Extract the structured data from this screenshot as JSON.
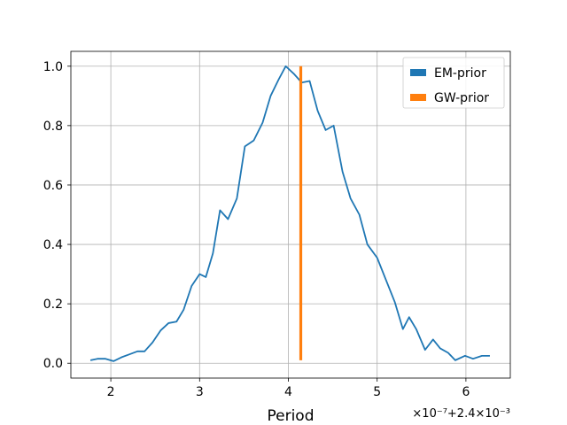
{
  "chart_data": {
    "type": "line",
    "xlabel": "Period",
    "ylabel": "",
    "x_offset_label": "×10⁻⁷+2.4×10⁻³",
    "xlim": [
      1.55,
      6.5
    ],
    "ylim": [
      -0.05,
      1.05
    ],
    "xticks": [
      2,
      3,
      4,
      5,
      6
    ],
    "yticks": [
      0.0,
      0.2,
      0.4,
      0.6,
      0.8,
      1.0
    ],
    "xtick_labels": [
      "2",
      "3",
      "4",
      "5",
      "6"
    ],
    "ytick_labels": [
      "0.0",
      "0.2",
      "0.4",
      "0.6",
      "0.8",
      "1.0"
    ],
    "grid": true,
    "legend_position": "top-right",
    "series": [
      {
        "name": "EM-prior",
        "color": "#1f77b4",
        "x": [
          1.77,
          1.85,
          1.94,
          2.03,
          2.12,
          2.21,
          2.3,
          2.38,
          2.47,
          2.56,
          2.65,
          2.74,
          2.82,
          2.91,
          3.0,
          3.07,
          3.15,
          3.23,
          3.32,
          3.42,
          3.51,
          3.61,
          3.71,
          3.8,
          3.89,
          3.97,
          4.06,
          4.15,
          4.24,
          4.33,
          4.42,
          4.51,
          4.61,
          4.7,
          4.8,
          4.89,
          5.0,
          5.1,
          5.2,
          5.29,
          5.36,
          5.44,
          5.54,
          5.63,
          5.71,
          5.8,
          5.88,
          5.99,
          6.08,
          6.18,
          6.27
        ],
        "values": [
          0.01,
          0.015,
          0.015,
          0.007,
          0.02,
          0.03,
          0.04,
          0.04,
          0.07,
          0.11,
          0.135,
          0.14,
          0.18,
          0.26,
          0.3,
          0.29,
          0.37,
          0.515,
          0.485,
          0.555,
          0.73,
          0.75,
          0.81,
          0.9,
          0.955,
          1.0,
          0.975,
          0.945,
          0.95,
          0.85,
          0.785,
          0.8,
          0.645,
          0.555,
          0.5,
          0.4,
          0.355,
          0.28,
          0.205,
          0.115,
          0.155,
          0.115,
          0.045,
          0.08,
          0.05,
          0.035,
          0.01,
          0.025,
          0.015,
          0.025,
          0.025
        ]
      },
      {
        "name": "GW-prior",
        "color": "#ff7f0e",
        "x": [
          4.14,
          4.14
        ],
        "values": [
          0.01,
          1.0
        ]
      }
    ]
  }
}
